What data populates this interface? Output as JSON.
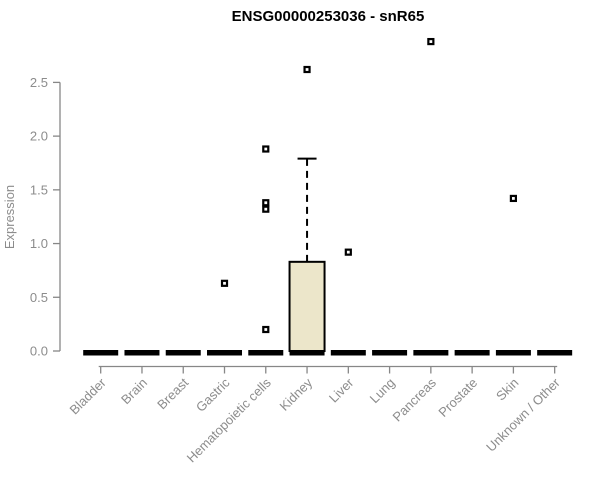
{
  "window": {
    "background": "#ffffff"
  },
  "chart_data": {
    "type": "boxplot",
    "title": "ENSG00000253036 - snR65",
    "xlabel": "",
    "ylabel": "Expression",
    "ylim": [
      0,
      2.5
    ],
    "yticks": [
      {
        "label": "0.0",
        "value": 0.0
      },
      {
        "label": "0.5",
        "value": 0.5
      },
      {
        "label": "1.0",
        "value": 1.0
      },
      {
        "label": "1.5",
        "value": 1.5
      },
      {
        "label": "2.0",
        "value": 2.0
      },
      {
        "label": "2.5",
        "value": 2.5
      }
    ],
    "categories": [
      "Bladder",
      "Brain",
      "Breast",
      "Gastric",
      "Hematopoietic cells",
      "Kidney",
      "Liver",
      "Lung",
      "Pancreas",
      "Prostate",
      "Skin",
      "Unknown / Other"
    ],
    "boxes": [
      {
        "category": "Bladder",
        "q1": 0,
        "median": 0,
        "q3": 0,
        "whisker_low": 0,
        "whisker_high": 0,
        "outliers": []
      },
      {
        "category": "Brain",
        "q1": 0,
        "median": 0,
        "q3": 0,
        "whisker_low": 0,
        "whisker_high": 0,
        "outliers": []
      },
      {
        "category": "Breast",
        "q1": 0,
        "median": 0,
        "q3": 0,
        "whisker_low": 0,
        "whisker_high": 0,
        "outliers": []
      },
      {
        "category": "Gastric",
        "q1": 0,
        "median": 0,
        "q3": 0,
        "whisker_low": 0,
        "whisker_high": 0,
        "outliers": [
          0.63
        ]
      },
      {
        "category": "Hematopoietic cells",
        "q1": 0,
        "median": 0,
        "q3": 0,
        "whisker_low": 0,
        "whisker_high": 0,
        "outliers": [
          1.88,
          1.38,
          1.32,
          0.2
        ]
      },
      {
        "category": "Kidney",
        "q1": 0,
        "median": 0,
        "q3": 0.83,
        "whisker_low": 0,
        "whisker_high": 1.79,
        "outliers": [
          2.62
        ]
      },
      {
        "category": "Liver",
        "q1": 0,
        "median": 0,
        "q3": 0,
        "whisker_low": 0,
        "whisker_high": 0,
        "outliers": [
          0.92
        ]
      },
      {
        "category": "Lung",
        "q1": 0,
        "median": 0,
        "q3": 0,
        "whisker_low": 0,
        "whisker_high": 0,
        "outliers": []
      },
      {
        "category": "Pancreas",
        "q1": 0,
        "median": 0,
        "q3": 0,
        "whisker_low": 0,
        "whisker_high": 0,
        "outliers": [
          2.88
        ]
      },
      {
        "category": "Prostate",
        "q1": 0,
        "median": 0,
        "q3": 0,
        "whisker_low": 0,
        "whisker_high": 0,
        "outliers": []
      },
      {
        "category": "Skin",
        "q1": 0,
        "median": 0,
        "q3": 0,
        "whisker_low": 0,
        "whisker_high": 0,
        "outliers": [
          1.42
        ]
      },
      {
        "category": "Unknown / Other",
        "q1": 0,
        "median": 0,
        "q3": 0,
        "whisker_low": 0,
        "whisker_high": 0,
        "outliers": []
      }
    ],
    "layout_hints": {
      "grid": "off",
      "legend": "none",
      "x_tick_label_rotation_deg": 45
    },
    "colors": {
      "box_fill": "#ECE6CA",
      "box_border": "#000000",
      "median": "#000000",
      "whisker": "#000000",
      "outlier": "#000000",
      "axis_line": "#878787",
      "axis_text": "#8c8c8c",
      "title": "#000000",
      "background": "#ffffff"
    }
  }
}
